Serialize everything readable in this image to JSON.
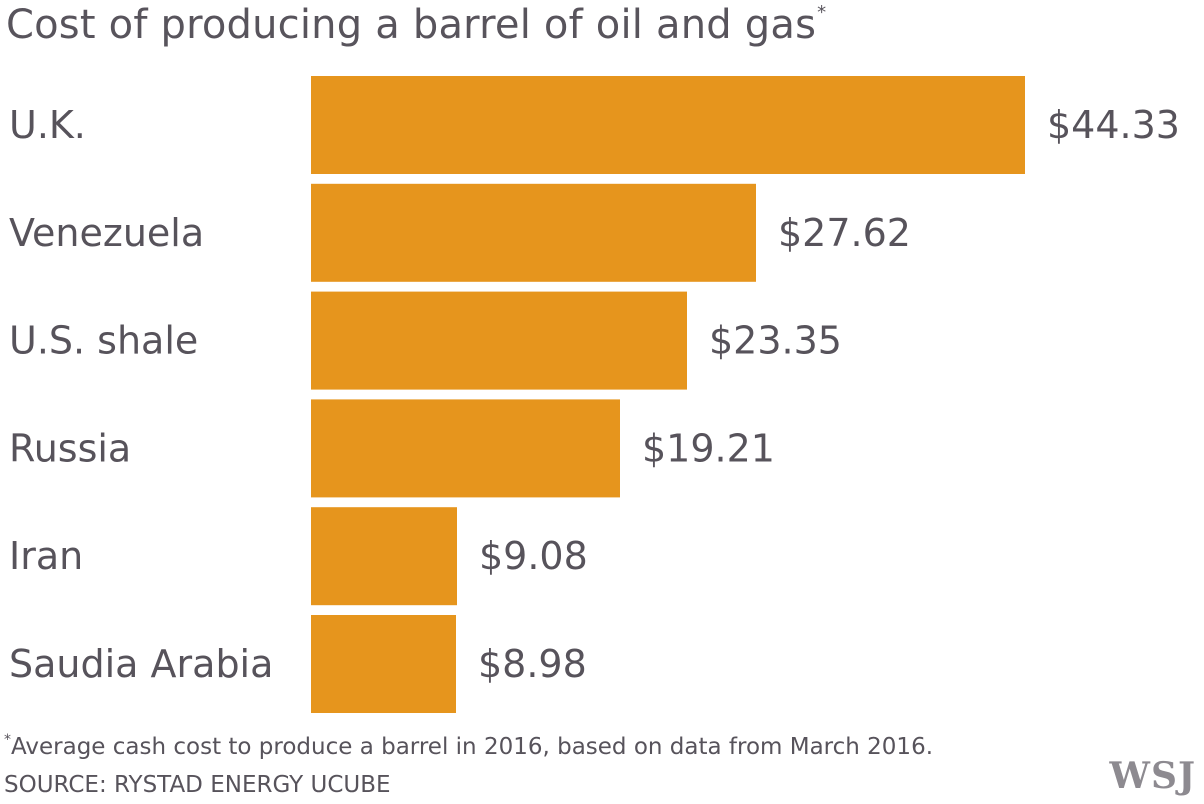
{
  "chart_data": {
    "type": "bar",
    "orientation": "horizontal",
    "title": "Cost of producing a barrel of oil and gas",
    "title_marker": "*",
    "categories": [
      "U.K.",
      "Venezuela",
      "U.S. shale",
      "Russia",
      "Iran",
      "Saudia Arabia"
    ],
    "values": [
      44.33,
      27.62,
      23.35,
      19.21,
      9.08,
      8.98
    ],
    "value_labels": [
      "$44.33",
      "$27.62",
      "$23.35",
      "$19.21",
      "$9.08",
      "$8.98"
    ],
    "xlabel": "",
    "ylabel": "",
    "xlim": [
      0,
      44.33
    ],
    "grid": false,
    "legend": "none",
    "bar_color": "#e6951d"
  },
  "footnote": {
    "marker": "*",
    "text": "Average cash cost to produce a barrel in 2016, based on data from March 2016."
  },
  "source": "SOURCE: RYSTAD ENERGY UCUBE",
  "logo_text": "WSJ"
}
